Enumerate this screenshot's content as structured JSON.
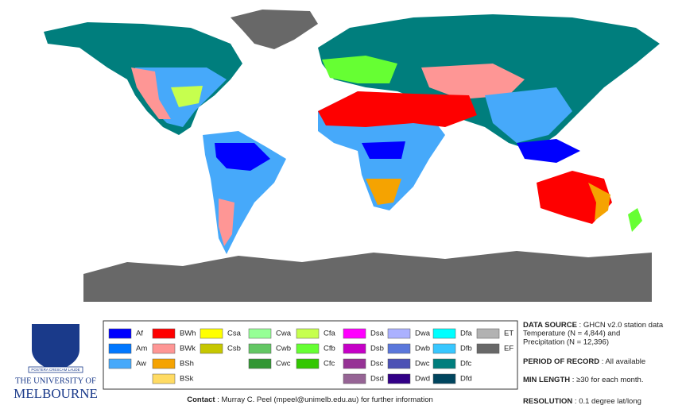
{
  "university": {
    "line1": "THE UNIVERSITY OF",
    "line2": "MELBOURNE",
    "motto": "POSTERA CRESCAM LAUDE"
  },
  "legend": {
    "columns": [
      [
        {
          "code": "Af",
          "color": "#0000fe"
        },
        {
          "code": "Am",
          "color": "#0077ff"
        },
        {
          "code": "Aw",
          "color": "#46a9fa"
        }
      ],
      [
        {
          "code": "BWh",
          "color": "#fe0000"
        },
        {
          "code": "BWk",
          "color": "#fe9695"
        },
        {
          "code": "BSh",
          "color": "#f5a301"
        },
        {
          "code": "BSk",
          "color": "#ffdb63"
        }
      ],
      [
        {
          "code": "Csa",
          "color": "#ffff00"
        },
        {
          "code": "Csb",
          "color": "#c6c700"
        }
      ],
      [
        {
          "code": "Cwa",
          "color": "#96ff96"
        },
        {
          "code": "Cwb",
          "color": "#63c764"
        },
        {
          "code": "Cwc",
          "color": "#329633"
        }
      ],
      [
        {
          "code": "Cfa",
          "color": "#c6ff4e"
        },
        {
          "code": "Cfb",
          "color": "#66ff33"
        },
        {
          "code": "Cfc",
          "color": "#33c701"
        }
      ],
      [
        {
          "code": "Dsa",
          "color": "#ff00fe"
        },
        {
          "code": "Dsb",
          "color": "#c600c7"
        },
        {
          "code": "Dsc",
          "color": "#963295"
        },
        {
          "code": "Dsd",
          "color": "#966495"
        }
      ],
      [
        {
          "code": "Dwa",
          "color": "#abb1ff"
        },
        {
          "code": "Dwb",
          "color": "#5a77db"
        },
        {
          "code": "Dwc",
          "color": "#4c51b5"
        },
        {
          "code": "Dwd",
          "color": "#320087"
        }
      ],
      [
        {
          "code": "Dfa",
          "color": "#00ffff"
        },
        {
          "code": "Dfb",
          "color": "#38c7ff"
        },
        {
          "code": "Dfc",
          "color": "#007e7d"
        },
        {
          "code": "Dfd",
          "color": "#00455e"
        }
      ],
      [
        {
          "code": "ET",
          "color": "#b2b2b2"
        },
        {
          "code": "EF",
          "color": "#686868"
        }
      ]
    ]
  },
  "contact": {
    "label": "Contact",
    "text": " : Murray C. Peel (mpeel@unimelb.edu.au) for further information"
  },
  "info": [
    {
      "label": "DATA SOURCE",
      "text": " : GHCN v2.0 station data",
      "lines": [
        "Temperature (N = 4,844) and",
        "Precipitation (N = 12,396)"
      ]
    },
    {
      "label": "PERIOD OF RECORD",
      "text": " : All available",
      "lines": []
    },
    {
      "label": "MIN LENGTH",
      "text": " : ≥30 for each month.",
      "lines": []
    },
    {
      "label": "RESOLUTION",
      "text": " : 0.1 degree lat/long",
      "lines": []
    }
  ]
}
